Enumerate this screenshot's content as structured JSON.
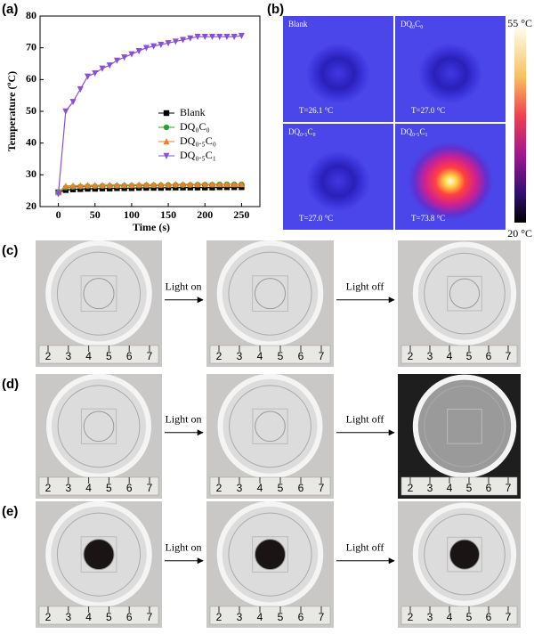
{
  "chart_data": {
    "type": "line",
    "panel": "(a)",
    "xlabel": "Time (s)",
    "ylabel": "Temperature (ºC)",
    "x": [
      0,
      10,
      20,
      30,
      40,
      50,
      60,
      70,
      80,
      90,
      100,
      110,
      120,
      130,
      140,
      150,
      160,
      170,
      180,
      190,
      200,
      210,
      220,
      230,
      240,
      250
    ],
    "xlim": [
      -25,
      275
    ],
    "xticks": [
      0,
      50,
      100,
      150,
      200,
      250
    ],
    "ylim": [
      20,
      80
    ],
    "yticks": [
      20,
      30,
      40,
      50,
      60,
      70,
      80
    ],
    "legend": "right",
    "series": [
      {
        "name": "Blank",
        "color": "#000000",
        "marker": "square",
        "values": [
          24.5,
          25.2,
          25.4,
          25.5,
          25.6,
          25.6,
          25.7,
          25.7,
          25.8,
          25.8,
          25.8,
          25.9,
          25.9,
          25.9,
          25.9,
          26,
          26,
          26,
          26,
          26,
          26,
          26,
          26.1,
          26.1,
          26.1,
          26.1
        ]
      },
      {
        "name": "DQ₀C₀",
        "color": "#2ca02c",
        "marker": "circle",
        "values": [
          24.5,
          26,
          26.2,
          26.3,
          26.4,
          26.4,
          26.5,
          26.5,
          26.5,
          26.6,
          26.6,
          26.6,
          26.7,
          26.7,
          26.7,
          26.8,
          26.8,
          26.8,
          26.8,
          26.9,
          26.9,
          26.9,
          27,
          27,
          27,
          27
        ]
      },
      {
        "name": "DQ₀.₅C₀",
        "color": "#f07f2a",
        "marker": "triangle-up",
        "values": [
          24.5,
          26.5,
          26.6,
          26.6,
          26.7,
          26.7,
          26.7,
          26.8,
          26.8,
          26.8,
          26.8,
          26.9,
          26.9,
          26.9,
          26.9,
          26.9,
          27,
          27,
          27,
          27,
          27,
          27,
          27,
          27,
          27,
          27
        ]
      },
      {
        "name": "DQ₀.₅C₁",
        "color": "#8a4fd6",
        "marker": "triangle-down",
        "values": [
          24,
          50,
          53,
          57,
          61,
          62,
          63.5,
          64.5,
          66,
          67,
          68,
          69,
          70,
          70.5,
          71,
          71.5,
          72,
          72.5,
          73,
          73.5,
          73.5,
          73.5,
          73.5,
          73.5,
          73.5,
          73.8
        ]
      }
    ]
  },
  "thermal": {
    "panel": "(b)",
    "scale_max": "55 °C",
    "scale_min": "20 °C",
    "images": [
      {
        "name": "Blank",
        "temp": "T=26.1 °C"
      },
      {
        "name": "DQ₀C₀",
        "temp": "T=27.0 °C"
      },
      {
        "name": "DQ₀.₅C₀",
        "temp": "T=27.0 °C"
      },
      {
        "name": "DQ₀.₅C₁",
        "temp": "T=73.8 °C"
      }
    ]
  },
  "photos": {
    "ruler": [
      "2",
      "3",
      "4",
      "5",
      "6",
      "7"
    ],
    "rows": [
      {
        "panel": "(c)",
        "on": "Light on",
        "off": "Light off"
      },
      {
        "panel": "(d)",
        "on": "Light on",
        "off": "Light off"
      },
      {
        "panel": "(e)",
        "on": "Light on",
        "off": "Light off"
      }
    ]
  }
}
